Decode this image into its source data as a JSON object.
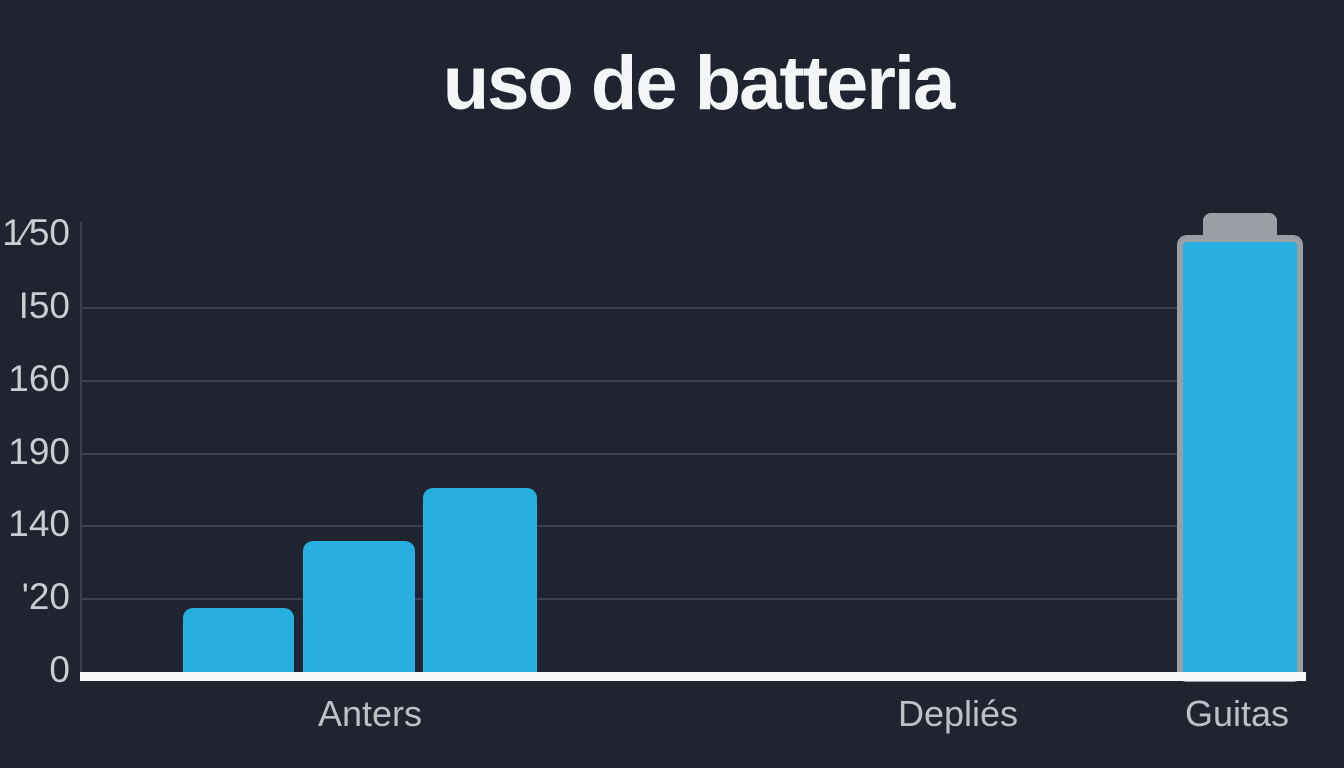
{
  "chart_data": {
    "type": "bar",
    "title": "uso de batteria",
    "categories": [
      "Anters",
      "Depliés",
      "Guitas"
    ],
    "y_axis": {
      "min": 0,
      "max": 150,
      "grid": true,
      "ticks": [
        {
          "label": "0",
          "value": 0,
          "gridline": false
        },
        {
          "label": "'20",
          "value": 25,
          "gridline": true
        },
        {
          "label": "140",
          "value": 50,
          "gridline": true
        },
        {
          "label": "190",
          "value": 75,
          "gridline": true
        },
        {
          "label": "160",
          "value": 100,
          "gridline": true
        },
        {
          "label": "I50",
          "value": 125,
          "gridline": true
        },
        {
          "label": "1⁄50",
          "value": 150,
          "gridline": false
        }
      ]
    },
    "series": [
      {
        "name": "blue-bars",
        "category": "Anters",
        "values": [
          22,
          45,
          63
        ],
        "style": "rounded-bar"
      },
      {
        "name": "battery-bar",
        "category": "Guitas",
        "values": [
          150
        ],
        "style": "battery"
      }
    ],
    "legend": "none",
    "colors": {
      "background": "#1f2430",
      "bar": "#26afdf",
      "battery_border": "#9b9ea4",
      "axis_line": "#f5f7f8",
      "gridline": "#3d434e",
      "tick_text": "#c9cdd3",
      "label_text": "#bcc0c7",
      "title_text": "#f4f5f6"
    }
  }
}
